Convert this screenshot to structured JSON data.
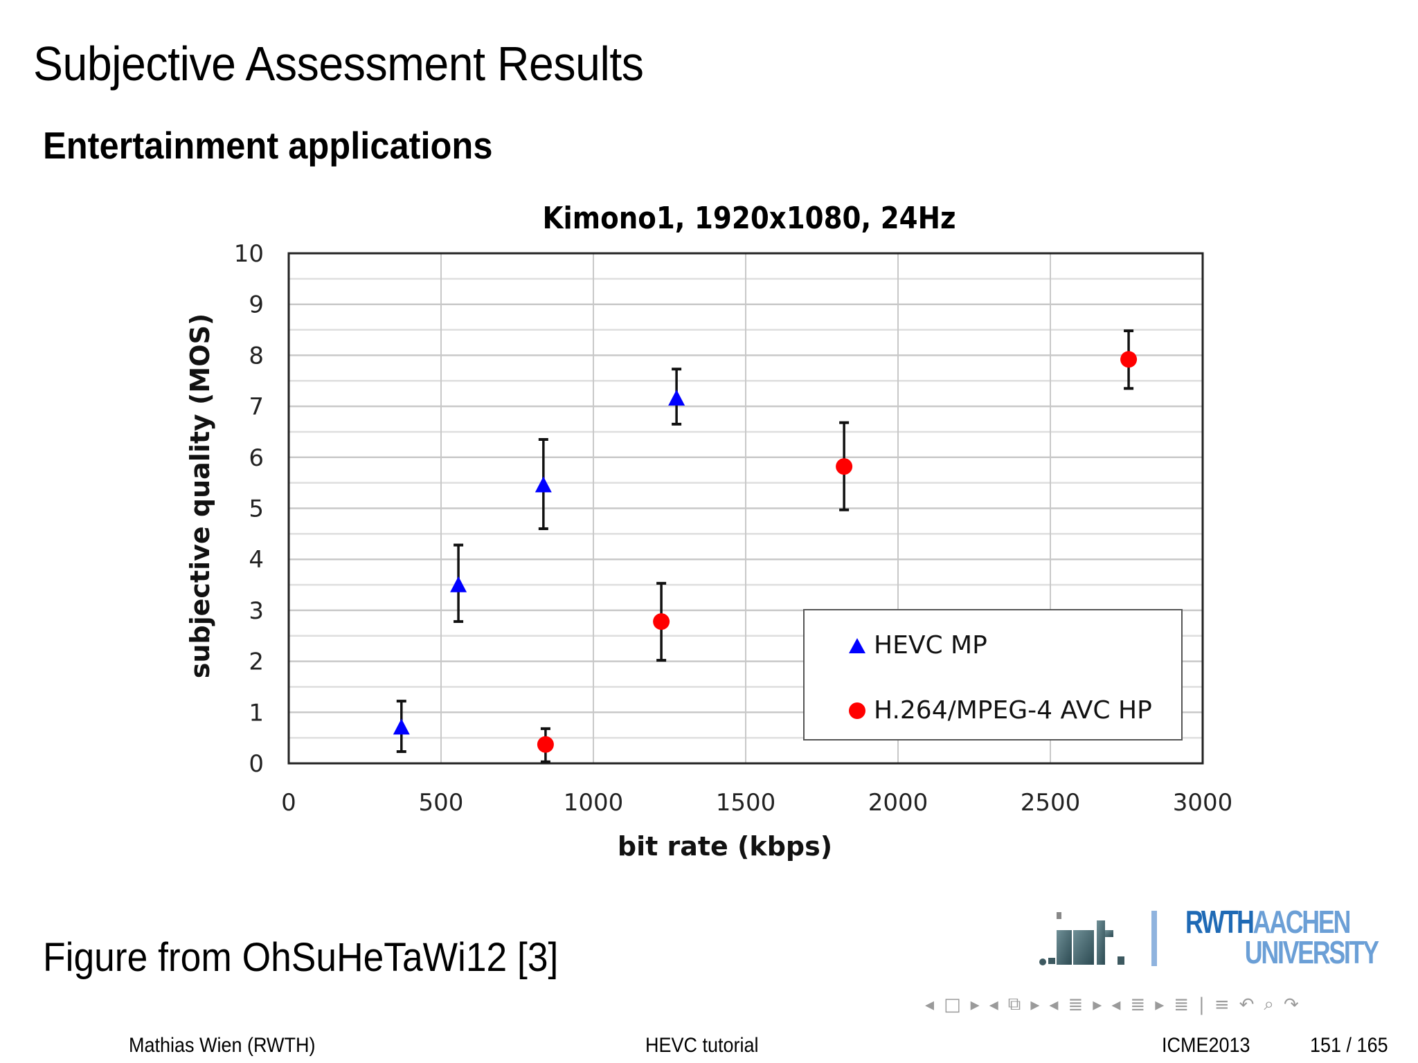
{
  "slide": {
    "title": "Subjective Assessment Results",
    "subtitle": "Entertainment applications",
    "caption": "Figure from OhSuHeTaWi12 [3]"
  },
  "chart_data": {
    "type": "scatter",
    "title": "Kimono1, 1920x1080, 24Hz",
    "xlabel": "bit rate (kbps)",
    "ylabel": "subjective quality (MOS)",
    "xlim": [
      0,
      3000
    ],
    "ylim": [
      0,
      10
    ],
    "xticks": [
      0,
      500,
      1000,
      1500,
      2000,
      2500,
      3000
    ],
    "yticks": [
      0,
      1,
      2,
      3,
      4,
      5,
      6,
      7,
      8,
      9,
      10
    ],
    "grid": {
      "major_x": 500,
      "major_y": 0.5
    },
    "legend_position": "lower right (inside)",
    "series": [
      {
        "name": "HEVC MP",
        "marker": "triangle",
        "color": "#0000ff",
        "points": [
          {
            "x": 370,
            "y": 0.7,
            "err_low": 0.23,
            "err_high": 1.22
          },
          {
            "x": 557,
            "y": 3.49,
            "err_low": 2.78,
            "err_high": 4.28
          },
          {
            "x": 836,
            "y": 5.45,
            "err_low": 4.6,
            "err_high": 6.35
          },
          {
            "x": 1273,
            "y": 7.15,
            "err_low": 6.65,
            "err_high": 7.73
          }
        ]
      },
      {
        "name": "H.264/MPEG-4 AVC HP",
        "marker": "circle",
        "color": "#ff0000",
        "points": [
          {
            "x": 843,
            "y": 0.37,
            "err_low": 0.03,
            "err_high": 0.68
          },
          {
            "x": 1223,
            "y": 2.78,
            "err_low": 2.02,
            "err_high": 3.53
          },
          {
            "x": 1823,
            "y": 5.82,
            "err_low": 4.97,
            "err_high": 6.68
          },
          {
            "x": 2757,
            "y": 7.92,
            "err_low": 7.35,
            "err_high": 8.48
          }
        ]
      }
    ]
  },
  "logos": {
    "institute": ".ient.",
    "rwth_part1": "RWTH",
    "rwth_part2": "AACHEN",
    "rwth_part3": "UNIVERSITY"
  },
  "navigation": {
    "icons": [
      "◂",
      "□",
      "▸",
      "◂",
      "⧉",
      "▸",
      "◂",
      "≣",
      "▸",
      "◂",
      "≣",
      "▸",
      "≣",
      "|",
      "≡",
      "↶",
      "⌕",
      "↷"
    ]
  },
  "footer": {
    "author": "Mathias Wien  (RWTH)",
    "talk": "HEVC tutorial",
    "conference": "ICME2013",
    "page": "151 / 165"
  }
}
